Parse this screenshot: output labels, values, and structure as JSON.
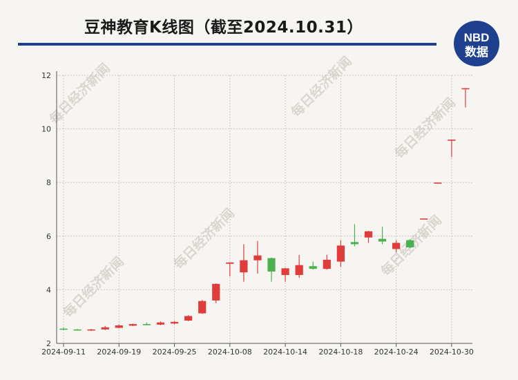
{
  "header": {
    "title": "豆神教育K线图（截至2024.10.31）"
  },
  "logo": {
    "top_text": "NBD",
    "bottom_text": "数据",
    "color": "#1f3f8f"
  },
  "watermark": {
    "text": "每日经济新闻"
  },
  "colors": {
    "up": "#e03c3c",
    "down": "#4caf50",
    "grid": "#b8b8b8"
  },
  "chart_data": {
    "type": "candlestick",
    "title": "豆神教育K线图（截至2024.10.31）",
    "ylim": [
      2,
      12
    ],
    "y_ticks": [
      2,
      4,
      6,
      8,
      10,
      12
    ],
    "grid": true,
    "x_tick_labels": [
      {
        "index": 0,
        "label": "2024-09-11"
      },
      {
        "index": 4,
        "label": "2024-09-19"
      },
      {
        "index": 8,
        "label": "2024-09-25"
      },
      {
        "index": 12,
        "label": "2024-10-08"
      },
      {
        "index": 16,
        "label": "2024-10-14"
      },
      {
        "index": 20,
        "label": "2024-10-18"
      },
      {
        "index": 24,
        "label": "2024-10-24"
      },
      {
        "index": 28,
        "label": "2024-10-30"
      }
    ],
    "candles": [
      {
        "open": 2.55,
        "close": 2.52,
        "high": 2.58,
        "low": 2.5
      },
      {
        "open": 2.52,
        "close": 2.5,
        "high": 2.54,
        "low": 2.48
      },
      {
        "open": 2.48,
        "close": 2.52,
        "high": 2.54,
        "low": 2.46
      },
      {
        "open": 2.52,
        "close": 2.6,
        "high": 2.65,
        "low": 2.5
      },
      {
        "open": 2.58,
        "close": 2.67,
        "high": 2.7,
        "low": 2.56
      },
      {
        "open": 2.66,
        "close": 2.72,
        "high": 2.74,
        "low": 2.64
      },
      {
        "open": 2.72,
        "close": 2.7,
        "high": 2.78,
        "low": 2.68
      },
      {
        "open": 2.7,
        "close": 2.78,
        "high": 2.82,
        "low": 2.68
      },
      {
        "open": 2.74,
        "close": 2.8,
        "high": 2.84,
        "low": 2.72
      },
      {
        "open": 2.85,
        "close": 3.02,
        "high": 3.05,
        "low": 2.83
      },
      {
        "open": 3.12,
        "close": 3.58,
        "high": 3.62,
        "low": 3.1
      },
      {
        "open": 3.6,
        "close": 4.22,
        "high": 4.24,
        "low": 3.5
      },
      {
        "open": 4.97,
        "close": 5.02,
        "high": 5.02,
        "low": 4.5
      },
      {
        "open": 4.65,
        "close": 5.1,
        "high": 5.7,
        "low": 4.3
      },
      {
        "open": 5.1,
        "close": 5.28,
        "high": 5.82,
        "low": 4.6
      },
      {
        "open": 5.18,
        "close": 4.68,
        "high": 5.2,
        "low": 4.3
      },
      {
        "open": 4.55,
        "close": 4.8,
        "high": 4.82,
        "low": 4.3
      },
      {
        "open": 4.55,
        "close": 4.92,
        "high": 5.3,
        "low": 4.45
      },
      {
        "open": 4.88,
        "close": 4.78,
        "high": 5.05,
        "low": 4.75
      },
      {
        "open": 4.78,
        "close": 5.12,
        "high": 5.3,
        "low": 4.75
      },
      {
        "open": 5.05,
        "close": 5.65,
        "high": 5.85,
        "low": 4.85
      },
      {
        "open": 5.78,
        "close": 5.7,
        "high": 6.45,
        "low": 5.62
      },
      {
        "open": 5.95,
        "close": 6.18,
        "high": 6.2,
        "low": 5.75
      },
      {
        "open": 5.9,
        "close": 5.8,
        "high": 6.35,
        "low": 5.7
      },
      {
        "open": 5.52,
        "close": 5.75,
        "high": 5.85,
        "low": 5.4
      },
      {
        "open": 5.85,
        "close": 5.58,
        "high": 5.88,
        "low": 5.55
      },
      {
        "open": 6.66,
        "close": 6.66,
        "high": 6.66,
        "low": 6.66
      },
      {
        "open": 8.0,
        "close": 8.0,
        "high": 8.0,
        "low": 8.0
      },
      {
        "open": 9.6,
        "close": 9.6,
        "high": 9.6,
        "low": 8.95
      },
      {
        "open": 11.52,
        "close": 11.52,
        "high": 11.52,
        "low": 10.8
      }
    ]
  }
}
